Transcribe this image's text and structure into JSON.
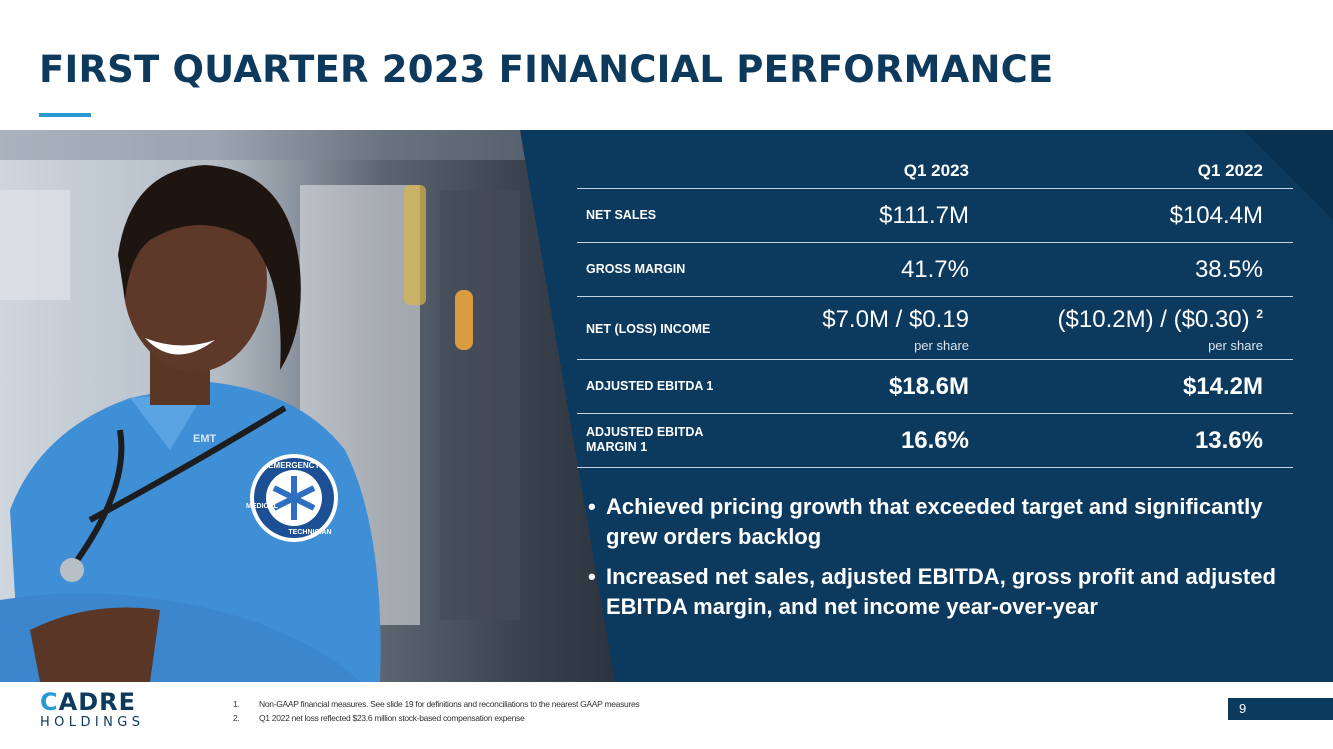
{
  "slide": {
    "title": "FIRST QUARTER 2023 FINANCIAL PERFORMANCE",
    "page_number": "9"
  },
  "table": {
    "headers": [
      "Q1 2023",
      "Q1 2022"
    ],
    "rows": [
      {
        "label": "NET SALES",
        "q1_2023": "$111.7M",
        "q1_2022": "$104.4M"
      },
      {
        "label": "GROSS MARGIN",
        "q1_2023": "41.7%",
        "q1_2022": "38.5%"
      },
      {
        "label": "NET (LOSS) INCOME",
        "q1_2023": "$7.0M / $0.19",
        "q1_2023_sub": "per share",
        "q1_2022": "($10.2M) / ($0.30)",
        "q1_2022_note": "2",
        "q1_2022_sub": "per share"
      },
      {
        "label": "ADJUSTED EBITDA",
        "label_note": "1",
        "q1_2023": "$18.6M",
        "q1_2022": "$14.2M"
      },
      {
        "label_line1": "ADJUSTED EBITDA",
        "label_line2": "MARGIN",
        "label_note": "1",
        "q1_2023": "16.6%",
        "q1_2022": "13.6%"
      }
    ]
  },
  "bullets": [
    "Achieved pricing growth that exceeded target and significantly grew orders backlog",
    "Increased net sales, adjusted EBITDA, gross profit and adjusted EBITDA margin, and net income year-over-year"
  ],
  "photo": {
    "patch_line1": "EMERGENCY",
    "patch_line2": "MEDICAL",
    "patch_line3": "TECHNICIAN",
    "name_tag": "EMT"
  },
  "logo": {
    "main_c": "C",
    "main_rest": "ADRE",
    "sub": "HOLDINGS"
  },
  "footnotes": [
    {
      "num": "1.",
      "text": "Non-GAAP financial measures. See slide 19 for definitions and reconciliations to the nearest GAAP measures"
    },
    {
      "num": "2.",
      "text": "Q1 2022 net loss reflected $23.6 million stock-based compensation expense"
    }
  ],
  "colors": {
    "navy": "#0c3a5f",
    "accent": "#2a98d2"
  }
}
